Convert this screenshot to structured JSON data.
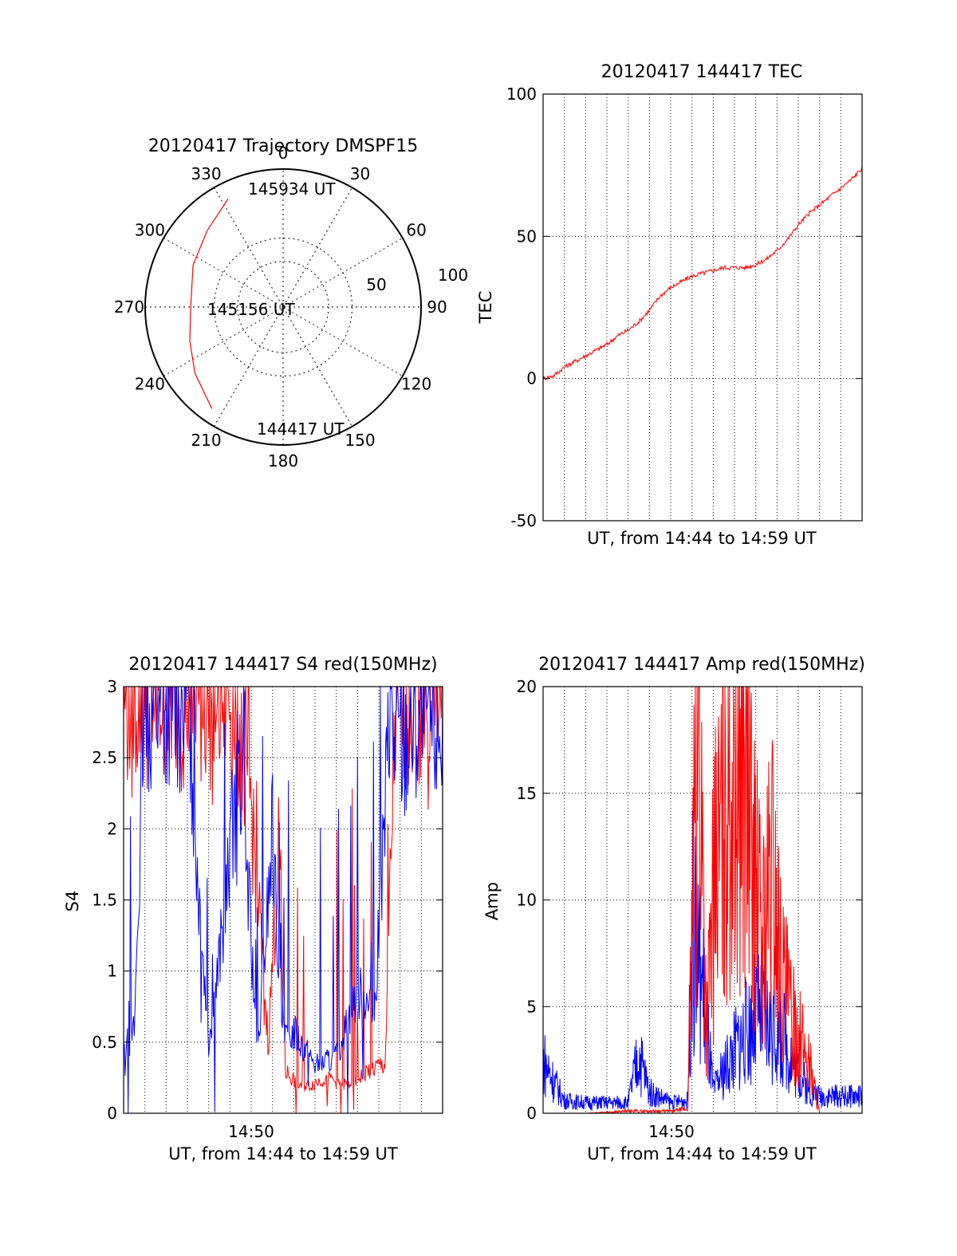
{
  "chart_data": [
    {
      "type": "polar",
      "title": "20120417 Trajectory DMSPF15",
      "angle_labels": [
        "0",
        "30",
        "60",
        "90",
        "120",
        "150",
        "180",
        "210",
        "240",
        "270",
        "300",
        "330"
      ],
      "radius_labels": [
        "50",
        "100"
      ],
      "rlim": [
        0,
        100
      ],
      "grid": true,
      "series": [
        {
          "color": "#ff0000",
          "points": [
            {
              "az": 333,
              "el": 12
            },
            {
              "az": 315,
              "el": 22
            },
            {
              "az": 295,
              "el": 28
            },
            {
              "az": 270,
              "el": 33
            },
            {
              "az": 250,
              "el": 28
            },
            {
              "az": 233,
              "el": 20
            },
            {
              "az": 215,
              "el": 10
            }
          ]
        }
      ],
      "annotations": [
        "145934 UT",
        "145156 UT",
        "144417 UT"
      ]
    },
    {
      "type": "line",
      "title": "20120417 144417 TEC",
      "xlabel": "UT, from 14:44 to 14:59 UT",
      "ylabel": "TEC",
      "xlim_minutes": [
        0,
        15
      ],
      "ylim": [
        -50,
        100
      ],
      "yticks": [
        "-50",
        "0",
        "50",
        "100"
      ],
      "grid": true,
      "series": [
        {
          "color": "#ff0000",
          "x": [
            0,
            0.5,
            1,
            1.5,
            2,
            2.5,
            3,
            3.5,
            4,
            4.5,
            5,
            5.5,
            6,
            6.5,
            7,
            7.5,
            8,
            8.5,
            9,
            9.5,
            10,
            10.5,
            11,
            11.5,
            12,
            12.5,
            13,
            13.5,
            14,
            14.5,
            15
          ],
          "y": [
            0,
            1,
            4,
            6,
            8,
            10,
            12,
            15,
            17,
            20,
            24,
            29,
            32,
            34,
            36,
            37,
            38,
            39,
            39,
            39,
            40,
            42,
            45,
            49,
            54,
            58,
            61,
            64,
            67,
            70,
            74
          ]
        }
      ]
    },
    {
      "type": "line",
      "title": "20120417 144417 S4 red(150MHz)",
      "xlabel": "UT, from 14:44 to 14:59 UT",
      "ylabel": "S4",
      "xticks": [
        "14:50"
      ],
      "xlim_minutes": [
        0,
        15
      ],
      "ylim": [
        0,
        3
      ],
      "yticks": [
        "0",
        "0.5",
        "1",
        "1.5",
        "2",
        "2.5",
        "3"
      ],
      "grid": true,
      "series": [
        {
          "color": "#ff0000",
          "x": [
            0.3,
            1.0,
            2.0,
            3.5,
            4.5,
            5.2,
            6.0,
            6.8,
            7.3,
            7.6,
            8.2,
            8.8,
            9.5,
            10.5,
            11.5,
            12.3,
            12.8,
            13.5,
            14.5
          ],
          "y": [
            3.0,
            3.0,
            3.0,
            3.0,
            3.0,
            3.0,
            2.2,
            0.5,
            1.9,
            0.3,
            0.2,
            0.2,
            0.25,
            0.2,
            0.3,
            0.35,
            3.0,
            3.0,
            3.0
          ]
        },
        {
          "color": "#0000ff",
          "x": [
            0.0,
            0.5,
            1.0,
            2.0,
            3.0,
            4.0,
            4.8,
            5.5,
            6.3,
            7.0,
            7.5,
            8.0,
            9.0,
            10.0,
            11.0,
            11.8,
            12.5,
            13.0,
            14.0,
            15.0
          ],
          "y": [
            0.45,
            0.6,
            3.0,
            3.0,
            3.0,
            0.5,
            1.5,
            2.6,
            0.4,
            2.0,
            0.5,
            0.6,
            0.35,
            0.4,
            0.9,
            0.7,
            2.8,
            2.7,
            2.9,
            2.8
          ]
        }
      ]
    },
    {
      "type": "line",
      "title": "20120417 144417 Amp red(150MHz)",
      "xlabel": "UT, from 14:44 to 14:59 UT",
      "ylabel": "Amp",
      "xticks": [
        "14:50"
      ],
      "xlim_minutes": [
        0,
        15
      ],
      "ylim": [
        0,
        20
      ],
      "yticks": [
        "0",
        "5",
        "10",
        "15",
        "20"
      ],
      "grid": true,
      "series": [
        {
          "color": "#0000ff",
          "x": [
            0.0,
            0.5,
            1.0,
            2.0,
            3.0,
            4.0,
            4.5,
            5.0,
            6.0,
            6.8,
            7.0,
            7.5,
            8.0,
            9.0,
            10.0,
            11.0,
            12.5,
            13.0,
            14.0,
            15.0
          ],
          "y": [
            2.5,
            1.5,
            0.6,
            0.5,
            0.5,
            0.5,
            2.8,
            1.0,
            0.5,
            0.6,
            8.5,
            6.0,
            1.0,
            3.0,
            4.5,
            4.0,
            1.0,
            0.8,
            0.8,
            0.8
          ]
        },
        {
          "color": "#ff0000",
          "x": [
            0.0,
            2.0,
            4.0,
            6.0,
            6.8,
            7.3,
            7.7,
            8.0,
            8.5,
            8.9,
            9.3,
            9.8,
            10.3,
            10.8,
            11.2,
            11.8,
            12.5,
            13.0,
            15.0
          ],
          "y": [
            0,
            0,
            0.1,
            0.1,
            0.2,
            19.5,
            4.0,
            10.0,
            14.0,
            16.0,
            18.5,
            12.0,
            8.0,
            11.5,
            6.5,
            4.0,
            2.5,
            0,
            0
          ]
        }
      ]
    }
  ]
}
